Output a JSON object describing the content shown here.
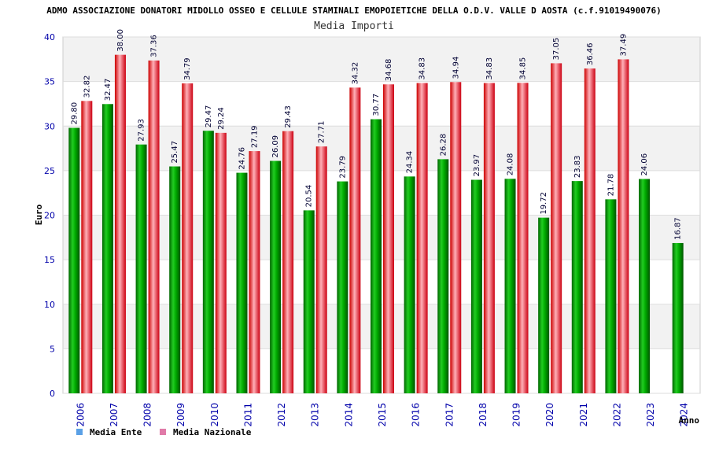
{
  "chart_data": {
    "type": "bar",
    "title": "ADMO ASSOCIAZIONE DONATORI MIDOLLO OSSEO E CELLULE STAMINALI EMOPOIETICHE DELLA O.D.V. VALLE D AOSTA (c.f.91019490076)",
    "subtitle": "Media Importi",
    "ylabel": "Euro",
    "xlabel": "Anno",
    "ylim": [
      0,
      40
    ],
    "yticks": [
      "0",
      "5",
      "10",
      "15",
      "20",
      "25",
      "30",
      "35",
      "40"
    ],
    "grid": true,
    "legend_position": "bottom-left",
    "categories": [
      "2006",
      "2007",
      "2008",
      "2009",
      "2010",
      "2011",
      "2012",
      "2013",
      "2014",
      "2015",
      "2016",
      "2017",
      "2018",
      "2019",
      "2020",
      "2021",
      "2022",
      "2023",
      "2024"
    ],
    "series": [
      {
        "name": "Media Ente",
        "legend_color": "#5aa0e6",
        "bar_color": "#00aa00",
        "values": [
          29.8,
          32.47,
          27.93,
          25.47,
          29.47,
          24.76,
          26.09,
          20.54,
          23.79,
          30.77,
          24.34,
          26.28,
          23.97,
          24.08,
          19.72,
          23.83,
          21.78,
          24.06,
          16.87
        ],
        "labels": [
          "29.80",
          "32.47",
          "27.93",
          "25.47",
          "29.47",
          "24.76",
          "26.09",
          "20.54",
          "23.79",
          "30.77",
          "24.34",
          "26.28",
          "23.97",
          "24.08",
          "19.72",
          "23.83",
          "21.78",
          "24.06",
          "16.87"
        ]
      },
      {
        "name": "Media Nazionale",
        "legend_color": "#e07aa8",
        "bar_color": "#e01020",
        "values": [
          32.82,
          38.0,
          37.36,
          34.79,
          29.24,
          27.19,
          29.43,
          27.71,
          34.32,
          34.68,
          34.83,
          34.94,
          34.83,
          34.85,
          37.05,
          36.46,
          37.49,
          null,
          null
        ],
        "labels": [
          "32.82",
          "38.00",
          "37.36",
          "34.79",
          "29.24",
          "27.19",
          "29.43",
          "27.71",
          "34.32",
          "34.68",
          "34.83",
          "34.94",
          "34.83",
          "34.85",
          "37.05",
          "36.46",
          "37.49",
          null,
          null
        ]
      }
    ]
  }
}
